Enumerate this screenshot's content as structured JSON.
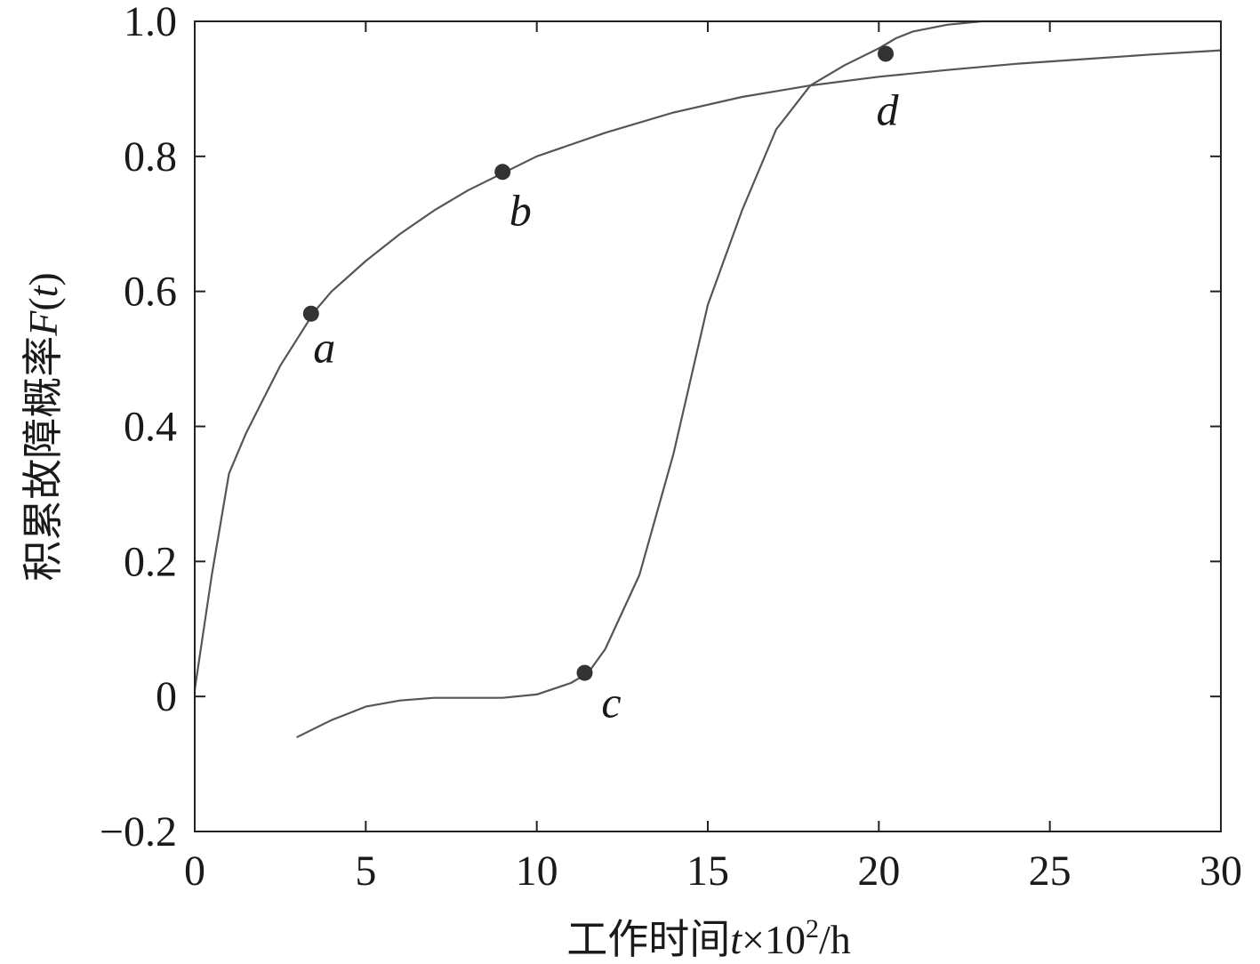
{
  "chart_data": {
    "type": "line",
    "xlabel_parts": {
      "prefix": "工作时间",
      "var": "t",
      "suffix": "×10",
      "sup": "2",
      "unit": "/h"
    },
    "ylabel_parts": {
      "prefix": "积累故障概率",
      "func": "F",
      "open": "(",
      "var": "t",
      "close": ")"
    },
    "xlim": [
      0,
      30
    ],
    "ylim": [
      -0.2,
      1.0
    ],
    "xticks": [
      0,
      5,
      10,
      15,
      20,
      25,
      30
    ],
    "xtick_labels": [
      "0",
      "5",
      "10",
      "15",
      "20",
      "25",
      "30"
    ],
    "yticks": [
      -0.2,
      0,
      0.2,
      0.4,
      0.6,
      0.8,
      1.0
    ],
    "ytick_labels": [
      "−0.2",
      "0",
      "0.2",
      "0.4",
      "0.6",
      "0.8",
      "1.0"
    ],
    "grid": false,
    "series": [
      {
        "x": [
          0,
          0.5,
          1,
          1.5,
          2,
          2.5,
          3,
          3.5,
          4,
          5,
          6,
          7,
          8,
          9,
          10,
          12,
          14,
          16,
          18,
          20,
          22,
          24,
          26,
          28,
          30
        ],
        "y": [
          0.01,
          0.18,
          0.33,
          0.39,
          0.44,
          0.49,
          0.53,
          0.57,
          0.6,
          0.645,
          0.685,
          0.72,
          0.75,
          0.775,
          0.8,
          0.835,
          0.865,
          0.888,
          0.905,
          0.918,
          0.928,
          0.937,
          0.944,
          0.951,
          0.957
        ]
      },
      {
        "x": [
          3,
          4,
          5,
          6,
          7,
          8,
          9,
          10,
          11,
          11.5,
          12,
          13,
          14,
          15,
          16,
          17,
          18,
          19,
          20,
          20.5,
          21,
          22,
          23,
          25,
          30
        ],
        "y": [
          -0.06,
          -0.035,
          -0.015,
          -0.006,
          -0.002,
          -0.002,
          -0.002,
          0.003,
          0.02,
          0.035,
          0.07,
          0.18,
          0.36,
          0.58,
          0.72,
          0.84,
          0.905,
          0.935,
          0.96,
          0.975,
          0.985,
          0.995,
          1.0,
          1.0,
          1.0
        ]
      }
    ],
    "points": [
      {
        "label": "a",
        "x": 3.4,
        "y": 0.567
      },
      {
        "label": "b",
        "x": 9.0,
        "y": 0.777
      },
      {
        "label": "c",
        "x": 11.4,
        "y": 0.035
      },
      {
        "label": "d",
        "x": 20.2,
        "y": 0.952
      }
    ],
    "colors": {
      "line": "#555555",
      "point": "#333333",
      "axis": "#222222"
    }
  }
}
